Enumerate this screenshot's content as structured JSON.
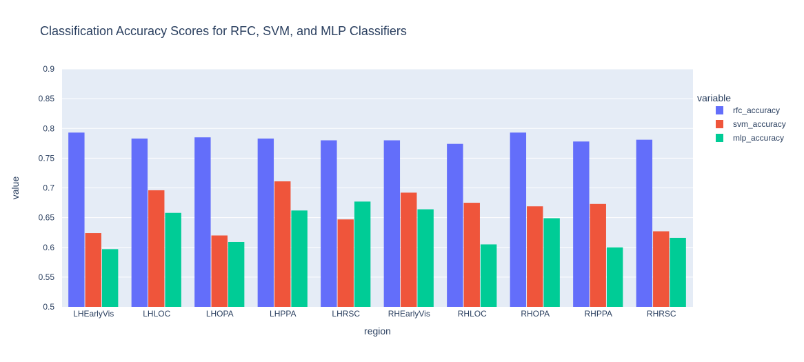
{
  "chart_data": {
    "type": "bar",
    "title": "Classification Accuracy Scores for RFC, SVM, and MLP Classifiers",
    "xlabel": "region",
    "ylabel": "value",
    "ylim": [
      0.5,
      0.9
    ],
    "yticks": [
      "0.5",
      "0.55",
      "0.6",
      "0.65",
      "0.7",
      "0.75",
      "0.8",
      "0.85",
      "0.9"
    ],
    "grid": true,
    "barmode": "group",
    "legend": {
      "title": "variable",
      "position": "top-right"
    },
    "categories": [
      "LHEarlyVis",
      "LHLOC",
      "LHOPA",
      "LHPPA",
      "LHRSC",
      "RHEarlyVis",
      "RHLOC",
      "RHOPA",
      "RHPPA",
      "RHRSC"
    ],
    "series": [
      {
        "name": "rfc_accuracy",
        "color": "#636efa",
        "values": [
          0.793,
          0.783,
          0.785,
          0.783,
          0.78,
          0.78,
          0.774,
          0.793,
          0.778,
          0.781
        ]
      },
      {
        "name": "svm_accuracy",
        "color": "#ef553b",
        "values": [
          0.624,
          0.696,
          0.62,
          0.711,
          0.647,
          0.692,
          0.675,
          0.669,
          0.673,
          0.627
        ]
      },
      {
        "name": "mlp_accuracy",
        "color": "#00cc96",
        "values": [
          0.597,
          0.658,
          0.609,
          0.662,
          0.677,
          0.664,
          0.605,
          0.649,
          0.6,
          0.616
        ]
      }
    ]
  }
}
